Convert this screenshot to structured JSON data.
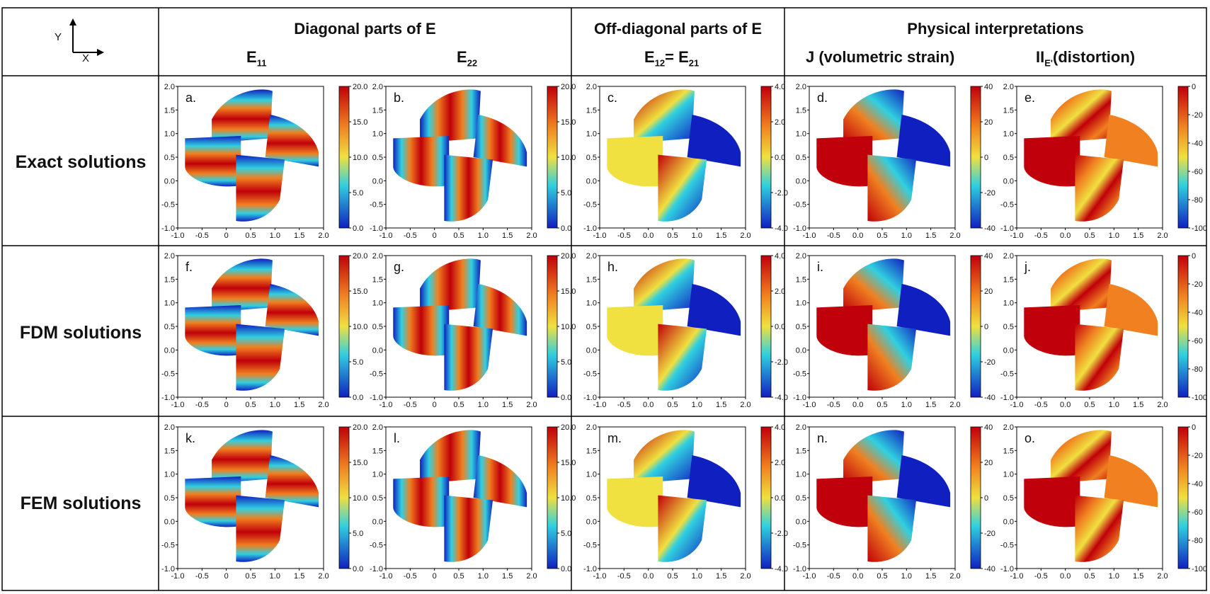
{
  "corner": {
    "y_label": "Y",
    "x_label": "X"
  },
  "groups": {
    "diagonal": "Diagonal parts of E",
    "off_diagonal": "Off-diagonal parts of E",
    "physical": "Physical interpretations"
  },
  "columns": {
    "e11": {
      "main": "E",
      "sub": "11"
    },
    "e22": {
      "main": "E",
      "sub": "22"
    },
    "e12": {
      "main1": "E",
      "sub1": "12",
      "mid": "= E",
      "sub2": "21"
    },
    "j": "J (volumetric strain)",
    "ii": {
      "pre": "II",
      "sub": "E'",
      "post": "(distortion)"
    }
  },
  "rows": [
    "Exact solutions",
    "FDM solutions",
    "FEM solutions"
  ],
  "panel_letters": [
    "a.",
    "b.",
    "c.",
    "d.",
    "e.",
    "f.",
    "g.",
    "h.",
    "i.",
    "j.",
    "k.",
    "l.",
    "m.",
    "n.",
    "o."
  ],
  "axis_ticks": {
    "x": [
      "-1.0",
      "-0.5",
      "0",
      "0.5",
      "1.0",
      "1.5",
      "2.0"
    ],
    "x_alt": [
      "-1.0",
      "-0.5",
      "0.0",
      "0.5",
      "1.0",
      "1.5",
      "2.0"
    ],
    "y": [
      "2.0",
      "1.5",
      "1.0",
      "0.5",
      "0.0",
      "-0.5",
      "-1.0"
    ]
  },
  "colorbars": {
    "e11": [
      "20.0",
      "15.0",
      "10.0",
      "5.0",
      "0.0"
    ],
    "e22": [
      "20.0",
      "15.0",
      "10.0",
      "5.0",
      "0.0"
    ],
    "e12": [
      "4.0",
      "2.0",
      "0.0",
      "-2.0",
      "-4.0"
    ],
    "j": [
      "40",
      "20",
      "0",
      "-20",
      "-40"
    ],
    "ii": [
      "0",
      "-20",
      "-40",
      "-60",
      "-80",
      "-100"
    ]
  },
  "colors": {
    "red": "#c0000a",
    "orange": "#f08020",
    "yellow": "#f0e040",
    "cyan": "#30d0e0",
    "blue": "#1020c0"
  }
}
